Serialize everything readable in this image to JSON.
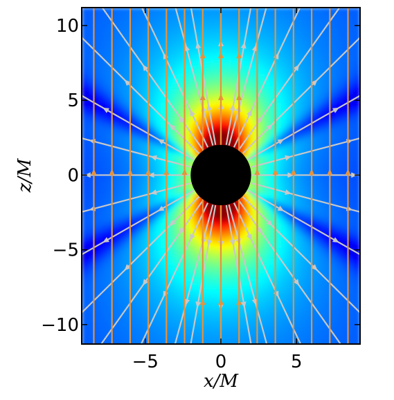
{
  "chart_data": {
    "type": "heatmap",
    "title": "",
    "xlabel": "x/M",
    "ylabel": "z/M",
    "xlim": [
      -9.2,
      9.2
    ],
    "ylim": [
      -11.3,
      11.2
    ],
    "xticks": [
      -5,
      0,
      5
    ],
    "yticks": [
      -10,
      -5,
      0,
      5,
      10
    ],
    "xtick_labels": [
      "−5",
      "0",
      "5"
    ],
    "ytick_labels": [
      "−10",
      "−5",
      "0",
      "5",
      "10"
    ],
    "colormap": "jet",
    "black_hole": {
      "center": [
        0,
        0
      ],
      "radius": 2.0,
      "color": "#000000"
    },
    "field_lines": {
      "color": "#e8923a",
      "direction": "up",
      "x_positions": [
        -8.4,
        -7.2,
        -6.0,
        -4.8,
        -3.6,
        -2.4,
        -1.2,
        0.0,
        1.2,
        2.4,
        3.6,
        4.8,
        6.0,
        7.2,
        8.4
      ]
    },
    "streamlines": {
      "color": "#c8c8c8",
      "direction": "outward-radial",
      "angles_deg": [
        0,
        15,
        30,
        45,
        55,
        65,
        75,
        80,
        90,
        100,
        105,
        115,
        125,
        135,
        150,
        165,
        180,
        195,
        210,
        225,
        235,
        245,
        255,
        260,
        270,
        280,
        285,
        295,
        305,
        315,
        330,
        345
      ]
    },
    "dashed_lines": {
      "color": "#000000",
      "slope_deg": 30,
      "segments": [
        {
          "from": [
            -9.2,
            5.31
          ],
          "to": [
            -2.0,
            1.15
          ]
        },
        {
          "from": [
            2.0,
            1.15
          ],
          "to": [
            9.2,
            5.31
          ]
        },
        {
          "from": [
            -9.2,
            -5.31
          ],
          "to": [
            -2.0,
            -1.15
          ]
        },
        {
          "from": [
            2.0,
            -1.15
          ],
          "to": [
            9.2,
            -5.31
          ]
        }
      ]
    },
    "grid": false,
    "legend": "none"
  }
}
